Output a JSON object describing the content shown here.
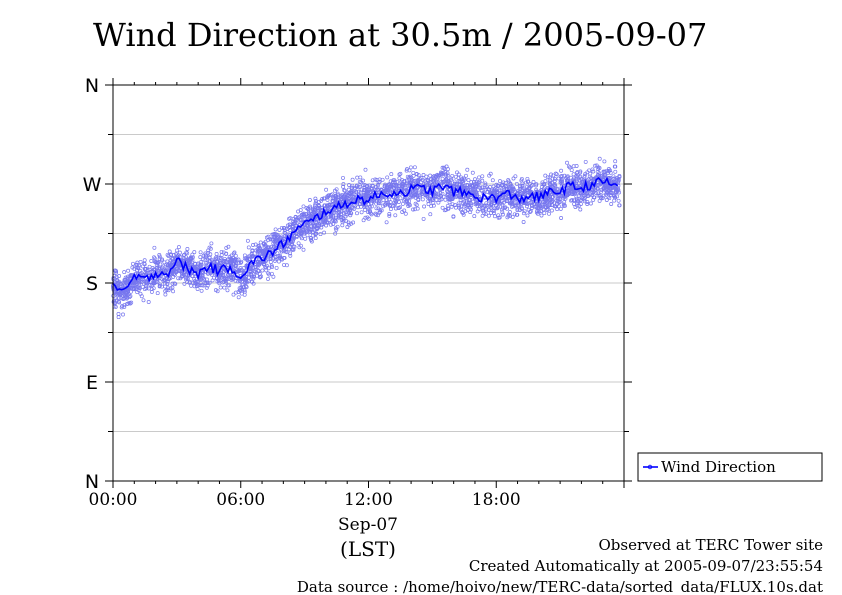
{
  "chart_data": {
    "type": "scatter",
    "title": "Wind Direction at 30.5m / 2005-09-07",
    "xlabel": "Sep-07",
    "xunit": "(LST)",
    "x_ticks": [
      "00:00",
      "06:00",
      "12:00",
      "18:00"
    ],
    "x_range_hours": [
      0,
      24
    ],
    "y_ticks": [
      "N",
      "E",
      "S",
      "W",
      "N"
    ],
    "y_range_deg": [
      0,
      360
    ],
    "grid": "horizontal",
    "legend": {
      "position": "right",
      "entries": [
        "Wind Direction"
      ]
    },
    "series": [
      {
        "name": "Wind Direction",
        "color": "#0000ff",
        "scatter_color": "#7777ee",
        "scatter_spread_deg": 22,
        "x_hours": [
          0,
          0.5,
          1,
          1.5,
          2,
          2.5,
          3,
          3.5,
          4,
          4.5,
          5,
          5.5,
          6,
          6.5,
          7,
          7.5,
          8,
          8.5,
          9,
          9.5,
          10,
          10.5,
          11,
          11.5,
          12,
          12.5,
          13,
          13.5,
          14,
          14.5,
          15,
          15.5,
          16,
          16.5,
          17,
          17.5,
          18,
          18.5,
          19,
          19.5,
          20,
          20.5,
          21,
          21.5,
          22,
          22.5,
          23,
          23.5
        ],
        "y_deg": [
          178,
          170,
          186,
          182,
          190,
          188,
          200,
          193,
          188,
          196,
          190,
          195,
          186,
          198,
          203,
          208,
          216,
          226,
          233,
          238,
          246,
          248,
          253,
          256,
          256,
          260,
          262,
          262,
          265,
          266,
          264,
          268,
          263,
          262,
          259,
          257,
          258,
          261,
          256,
          259,
          258,
          262,
          264,
          268,
          266,
          270,
          272,
          270
        ]
      }
    ]
  },
  "annotations": {
    "site": "Observed at TERC Tower site",
    "created": "Created Automatically at 2005-09-07/23:55:54",
    "source": "Data source : /home/hoivo/new/TERC-data/sorted_data/FLUX.10s.dat"
  }
}
